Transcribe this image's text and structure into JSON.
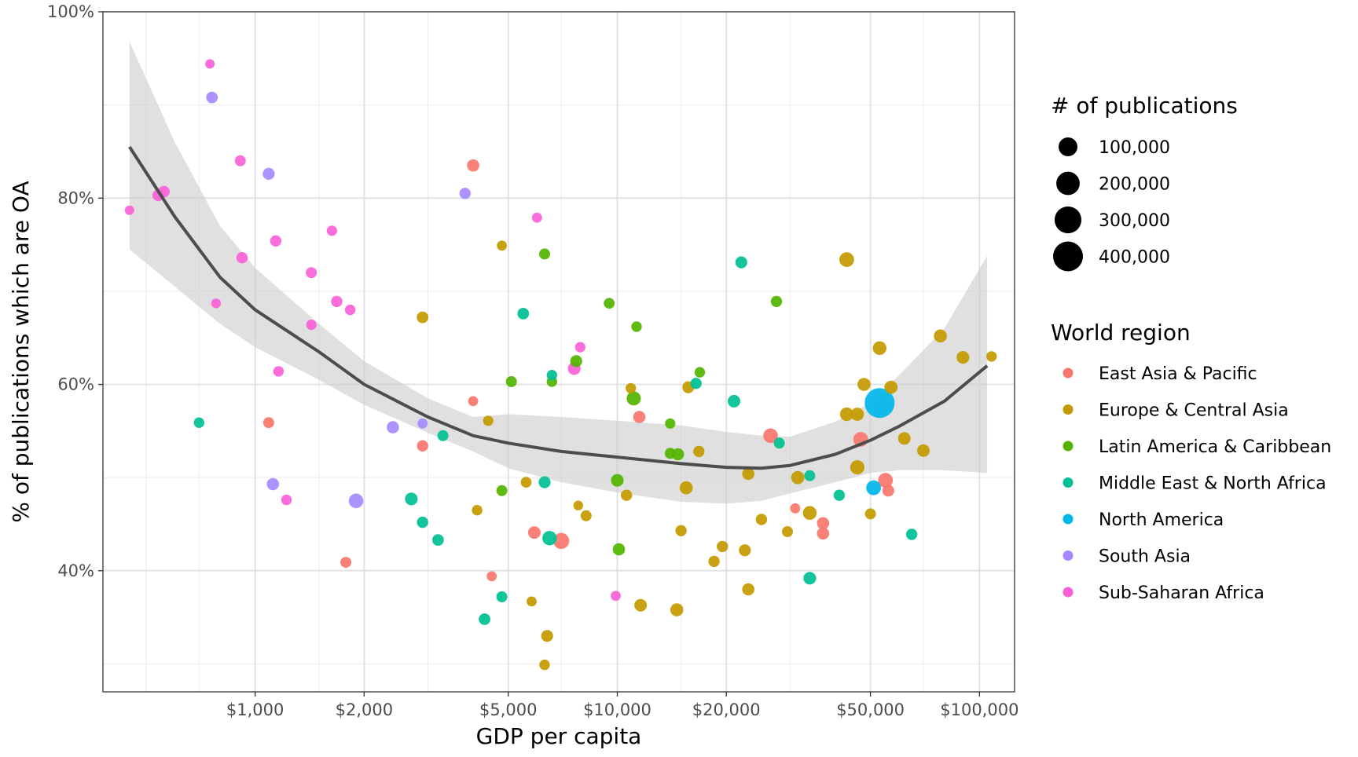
{
  "chart_data": {
    "type": "scatter",
    "xlabel": "GDP per capita",
    "ylabel": "% of publications which are OA",
    "x_scale": "log10",
    "xlim": [
      380,
      125000
    ],
    "ylim": [
      0.27,
      1.0
    ],
    "grid": true,
    "legend_placement": "right",
    "x_ticks": [
      {
        "value": 1000,
        "label": "$1,000"
      },
      {
        "value": 2000,
        "label": "$2,000"
      },
      {
        "value": 5000,
        "label": "$5,000"
      },
      {
        "value": 10000,
        "label": "$10,000"
      },
      {
        "value": 20000,
        "label": "$20,000"
      },
      {
        "value": 50000,
        "label": "$50,000"
      },
      {
        "value": 100000,
        "label": "$100,000"
      }
    ],
    "x_minor_ticks": [
      500,
      700,
      1500,
      3000,
      7000,
      15000,
      30000,
      70000
    ],
    "y_ticks": [
      {
        "value": 0.4,
        "label": "40%"
      },
      {
        "value": 0.6,
        "label": "60%"
      },
      {
        "value": 0.8,
        "label": "80%"
      },
      {
        "value": 1.0,
        "label": "100%"
      }
    ],
    "y_minor_ticks": [
      0.3,
      0.5,
      0.7,
      0.9
    ],
    "size_legend": {
      "title": "# of publications",
      "entries": [
        {
          "label": "100,000",
          "value": 100000
        },
        {
          "label": "200,000",
          "value": 200000
        },
        {
          "label": "300,000",
          "value": 300000
        },
        {
          "label": "400,000",
          "value": 400000
        }
      ]
    },
    "color_legend": {
      "title": "World region",
      "entries": [
        {
          "label": "East Asia & Pacific",
          "color": "#F8766D"
        },
        {
          "label": "Europe & Central Asia",
          "color": "#C49A00"
        },
        {
          "label": "Latin America & Caribbean",
          "color": "#53B400"
        },
        {
          "label": "Middle East & North Africa",
          "color": "#00C094"
        },
        {
          "label": "North America",
          "color": "#00B6EB"
        },
        {
          "label": "South Asia",
          "color": "#A58AFF"
        },
        {
          "label": "Sub-Saharan Africa",
          "color": "#FB61D7"
        }
      ]
    },
    "trend": {
      "type": "loess",
      "color": "#4d4d4d",
      "band_color": "#cccccc",
      "points": [
        {
          "x": 450,
          "y": 0.855,
          "lo": 0.745,
          "hi": 0.968
        },
        {
          "x": 600,
          "y": 0.78,
          "lo": 0.705,
          "hi": 0.86
        },
        {
          "x": 800,
          "y": 0.715,
          "lo": 0.665,
          "hi": 0.77
        },
        {
          "x": 1000,
          "y": 0.68,
          "lo": 0.64,
          "hi": 0.725
        },
        {
          "x": 1500,
          "y": 0.635,
          "lo": 0.605,
          "hi": 0.665
        },
        {
          "x": 2000,
          "y": 0.6,
          "lo": 0.578,
          "hi": 0.625
        },
        {
          "x": 3000,
          "y": 0.565,
          "lo": 0.548,
          "hi": 0.585
        },
        {
          "x": 4000,
          "y": 0.545,
          "lo": 0.528,
          "hi": 0.565
        },
        {
          "x": 5000,
          "y": 0.537,
          "lo": 0.51,
          "hi": 0.568
        },
        {
          "x": 7000,
          "y": 0.528,
          "lo": 0.495,
          "hi": 0.565
        },
        {
          "x": 10000,
          "y": 0.522,
          "lo": 0.484,
          "hi": 0.561
        },
        {
          "x": 15000,
          "y": 0.515,
          "lo": 0.474,
          "hi": 0.556
        },
        {
          "x": 20000,
          "y": 0.511,
          "lo": 0.472,
          "hi": 0.549
        },
        {
          "x": 25000,
          "y": 0.51,
          "lo": 0.475,
          "hi": 0.545
        },
        {
          "x": 30000,
          "y": 0.513,
          "lo": 0.483,
          "hi": 0.544
        },
        {
          "x": 40000,
          "y": 0.525,
          "lo": 0.495,
          "hi": 0.56
        },
        {
          "x": 50000,
          "y": 0.54,
          "lo": 0.505,
          "hi": 0.58
        },
        {
          "x": 60000,
          "y": 0.555,
          "lo": 0.508,
          "hi": 0.61
        },
        {
          "x": 80000,
          "y": 0.582,
          "lo": 0.508,
          "hi": 0.66
        },
        {
          "x": 105000,
          "y": 0.62,
          "lo": 0.505,
          "hi": 0.738
        }
      ]
    },
    "points": [
      {
        "x": 450,
        "y": 0.787,
        "r": "Sub-Saharan Africa",
        "n": 2000
      },
      {
        "x": 540,
        "y": 0.803,
        "r": "Sub-Saharan Africa",
        "n": 12000
      },
      {
        "x": 560,
        "y": 0.807,
        "r": "Sub-Saharan Africa",
        "n": 12000
      },
      {
        "x": 750,
        "y": 0.944,
        "r": "Sub-Saharan Africa",
        "n": 2000
      },
      {
        "x": 760,
        "y": 0.908,
        "r": "South Asia",
        "n": 12000
      },
      {
        "x": 780,
        "y": 0.687,
        "r": "Sub-Saharan Africa",
        "n": 3000
      },
      {
        "x": 910,
        "y": 0.84,
        "r": "Sub-Saharan Africa",
        "n": 8000
      },
      {
        "x": 920,
        "y": 0.736,
        "r": "Sub-Saharan Africa",
        "n": 10000
      },
      {
        "x": 1090,
        "y": 0.826,
        "r": "South Asia",
        "n": 14000
      },
      {
        "x": 1140,
        "y": 0.754,
        "r": "Sub-Saharan Africa",
        "n": 10000
      },
      {
        "x": 1160,
        "y": 0.614,
        "r": "Sub-Saharan Africa",
        "n": 6000
      },
      {
        "x": 1430,
        "y": 0.72,
        "r": "Sub-Saharan Africa",
        "n": 8000
      },
      {
        "x": 1430,
        "y": 0.664,
        "r": "Sub-Saharan Africa",
        "n": 5000
      },
      {
        "x": 1630,
        "y": 0.765,
        "r": "Sub-Saharan Africa",
        "n": 5000
      },
      {
        "x": 1680,
        "y": 0.689,
        "r": "Sub-Saharan Africa",
        "n": 10000
      },
      {
        "x": 1830,
        "y": 0.68,
        "r": "Sub-Saharan Africa",
        "n": 6000
      },
      {
        "x": 1220,
        "y": 0.476,
        "r": "Sub-Saharan Africa",
        "n": 6000
      },
      {
        "x": 9900,
        "y": 0.373,
        "r": "Sub-Saharan Africa",
        "n": 4000
      },
      {
        "x": 6000,
        "y": 0.779,
        "r": "Sub-Saharan Africa",
        "n": 4000
      },
      {
        "x": 7900,
        "y": 0.64,
        "r": "Sub-Saharan Africa",
        "n": 5000
      },
      {
        "x": 7600,
        "y": 0.617,
        "r": "Sub-Saharan Africa",
        "n": 20000
      },
      {
        "x": 3800,
        "y": 0.805,
        "r": "South Asia",
        "n": 10000
      },
      {
        "x": 2400,
        "y": 0.554,
        "r": "South Asia",
        "n": 16000
      },
      {
        "x": 2900,
        "y": 0.558,
        "r": "South Asia",
        "n": 4000
      },
      {
        "x": 1120,
        "y": 0.493,
        "r": "South Asia",
        "n": 16000
      },
      {
        "x": 1900,
        "y": 0.475,
        "r": "South Asia",
        "n": 38000
      },
      {
        "x": 4000,
        "y": 0.835,
        "r": "East Asia & Pacific",
        "n": 16000
      },
      {
        "x": 1090,
        "y": 0.559,
        "r": "East Asia & Pacific",
        "n": 8000
      },
      {
        "x": 2900,
        "y": 0.534,
        "r": "East Asia & Pacific",
        "n": 10000
      },
      {
        "x": 4000,
        "y": 0.582,
        "r": "East Asia & Pacific",
        "n": 4000
      },
      {
        "x": 1780,
        "y": 0.409,
        "r": "East Asia & Pacific",
        "n": 8000
      },
      {
        "x": 4500,
        "y": 0.394,
        "r": "East Asia & Pacific",
        "n": 4000
      },
      {
        "x": 5900,
        "y": 0.441,
        "r": "East Asia & Pacific",
        "n": 18000
      },
      {
        "x": 7000,
        "y": 0.432,
        "r": "East Asia & Pacific",
        "n": 55000
      },
      {
        "x": 11500,
        "y": 0.565,
        "r": "East Asia & Pacific",
        "n": 16000
      },
      {
        "x": 26500,
        "y": 0.545,
        "r": "East Asia & Pacific",
        "n": 38000
      },
      {
        "x": 31000,
        "y": 0.467,
        "r": "East Asia & Pacific",
        "n": 4000
      },
      {
        "x": 37000,
        "y": 0.451,
        "r": "East Asia & Pacific",
        "n": 16000
      },
      {
        "x": 37000,
        "y": 0.44,
        "r": "East Asia & Pacific",
        "n": 16000
      },
      {
        "x": 47000,
        "y": 0.541,
        "r": "East Asia & Pacific",
        "n": 40000
      },
      {
        "x": 55000,
        "y": 0.497,
        "r": "East Asia & Pacific",
        "n": 40000
      },
      {
        "x": 56000,
        "y": 0.486,
        "r": "East Asia & Pacific",
        "n": 14000
      },
      {
        "x": 4800,
        "y": 0.749,
        "r": "Europe & Central Asia",
        "n": 4000
      },
      {
        "x": 2900,
        "y": 0.672,
        "r": "Europe & Central Asia",
        "n": 12000
      },
      {
        "x": 4400,
        "y": 0.561,
        "r": "Europe & Central Asia",
        "n": 5000
      },
      {
        "x": 5600,
        "y": 0.495,
        "r": "Europe & Central Asia",
        "n": 7000
      },
      {
        "x": 4100,
        "y": 0.465,
        "r": "Europe & Central Asia",
        "n": 6000
      },
      {
        "x": 7800,
        "y": 0.47,
        "r": "Europe & Central Asia",
        "n": 3000
      },
      {
        "x": 8200,
        "y": 0.459,
        "r": "Europe & Central Asia",
        "n": 8000
      },
      {
        "x": 5800,
        "y": 0.367,
        "r": "Europe & Central Asia",
        "n": 4000
      },
      {
        "x": 6400,
        "y": 0.33,
        "r": "Europe & Central Asia",
        "n": 14000
      },
      {
        "x": 6300,
        "y": 0.299,
        "r": "Europe & Central Asia",
        "n": 6000
      },
      {
        "x": 10900,
        "y": 0.596,
        "r": "Europe & Central Asia",
        "n": 5000
      },
      {
        "x": 10600,
        "y": 0.481,
        "r": "Europe & Central Asia",
        "n": 10000
      },
      {
        "x": 11600,
        "y": 0.363,
        "r": "Europe & Central Asia",
        "n": 18000
      },
      {
        "x": 14600,
        "y": 0.358,
        "r": "Europe & Central Asia",
        "n": 22000
      },
      {
        "x": 15000,
        "y": 0.443,
        "r": "Europe & Central Asia",
        "n": 10000
      },
      {
        "x": 15700,
        "y": 0.597,
        "r": "Europe & Central Asia",
        "n": 14000
      },
      {
        "x": 15500,
        "y": 0.489,
        "r": "Europe & Central Asia",
        "n": 22000
      },
      {
        "x": 16800,
        "y": 0.528,
        "r": "Europe & Central Asia",
        "n": 10000
      },
      {
        "x": 18500,
        "y": 0.41,
        "r": "Europe & Central Asia",
        "n": 10000
      },
      {
        "x": 19500,
        "y": 0.426,
        "r": "Europe & Central Asia",
        "n": 10000
      },
      {
        "x": 22500,
        "y": 0.422,
        "r": "Europe & Central Asia",
        "n": 14000
      },
      {
        "x": 23000,
        "y": 0.38,
        "r": "Europe & Central Asia",
        "n": 16000
      },
      {
        "x": 23000,
        "y": 0.504,
        "r": "Europe & Central Asia",
        "n": 16000
      },
      {
        "x": 25000,
        "y": 0.455,
        "r": "Europe & Central Asia",
        "n": 10000
      },
      {
        "x": 29500,
        "y": 0.442,
        "r": "Europe & Central Asia",
        "n": 8000
      },
      {
        "x": 31500,
        "y": 0.5,
        "r": "Europe & Central Asia",
        "n": 24000
      },
      {
        "x": 34000,
        "y": 0.462,
        "r": "Europe & Central Asia",
        "n": 30000
      },
      {
        "x": 43000,
        "y": 0.734,
        "r": "Europe & Central Asia",
        "n": 40000
      },
      {
        "x": 43000,
        "y": 0.568,
        "r": "Europe & Central Asia",
        "n": 26000
      },
      {
        "x": 46000,
        "y": 0.568,
        "r": "Europe & Central Asia",
        "n": 24000
      },
      {
        "x": 46000,
        "y": 0.511,
        "r": "Europe & Central Asia",
        "n": 34000
      },
      {
        "x": 48000,
        "y": 0.6,
        "r": "Europe & Central Asia",
        "n": 22000
      },
      {
        "x": 50000,
        "y": 0.461,
        "r": "Europe & Central Asia",
        "n": 8000
      },
      {
        "x": 53000,
        "y": 0.639,
        "r": "Europe & Central Asia",
        "n": 28000
      },
      {
        "x": 57000,
        "y": 0.597,
        "r": "Europe & Central Asia",
        "n": 24000
      },
      {
        "x": 62000,
        "y": 0.542,
        "r": "Europe & Central Asia",
        "n": 18000
      },
      {
        "x": 70000,
        "y": 0.529,
        "r": "Europe & Central Asia",
        "n": 18000
      },
      {
        "x": 78000,
        "y": 0.652,
        "r": "Europe & Central Asia",
        "n": 22000
      },
      {
        "x": 90000,
        "y": 0.629,
        "r": "Europe & Central Asia",
        "n": 20000
      },
      {
        "x": 108000,
        "y": 0.63,
        "r": "Europe & Central Asia",
        "n": 6000
      },
      {
        "x": 6300,
        "y": 0.74,
        "r": "Latin America & Caribbean",
        "n": 8000
      },
      {
        "x": 5100,
        "y": 0.603,
        "r": "Latin America & Caribbean",
        "n": 8000
      },
      {
        "x": 6600,
        "y": 0.603,
        "r": "Latin America & Caribbean",
        "n": 6000
      },
      {
        "x": 7700,
        "y": 0.625,
        "r": "Latin America & Caribbean",
        "n": 14000
      },
      {
        "x": 4800,
        "y": 0.486,
        "r": "Latin America & Caribbean",
        "n": 8000
      },
      {
        "x": 9500,
        "y": 0.687,
        "r": "Latin America & Caribbean",
        "n": 7000
      },
      {
        "x": 11300,
        "y": 0.662,
        "r": "Latin America & Caribbean",
        "n": 6000
      },
      {
        "x": 11100,
        "y": 0.585,
        "r": "Latin America & Caribbean",
        "n": 32000
      },
      {
        "x": 10000,
        "y": 0.497,
        "r": "Latin America & Caribbean",
        "n": 20000
      },
      {
        "x": 10100,
        "y": 0.423,
        "r": "Latin America & Caribbean",
        "n": 16000
      },
      {
        "x": 14000,
        "y": 0.558,
        "r": "Latin America & Caribbean",
        "n": 5000
      },
      {
        "x": 14000,
        "y": 0.526,
        "r": "Latin America & Caribbean",
        "n": 8000
      },
      {
        "x": 14700,
        "y": 0.525,
        "r": "Latin America & Caribbean",
        "n": 16000
      },
      {
        "x": 16900,
        "y": 0.613,
        "r": "Latin America & Caribbean",
        "n": 6000
      },
      {
        "x": 27500,
        "y": 0.689,
        "r": "Latin America & Caribbean",
        "n": 10000
      },
      {
        "x": 700,
        "y": 0.559,
        "r": "Middle East & North Africa",
        "n": 6000
      },
      {
        "x": 3300,
        "y": 0.545,
        "r": "Middle East & North Africa",
        "n": 8000
      },
      {
        "x": 2700,
        "y": 0.477,
        "r": "Middle East & North Africa",
        "n": 20000
      },
      {
        "x": 2900,
        "y": 0.452,
        "r": "Middle East & North Africa",
        "n": 10000
      },
      {
        "x": 3200,
        "y": 0.433,
        "r": "Middle East & North Africa",
        "n": 12000
      },
      {
        "x": 5500,
        "y": 0.676,
        "r": "Middle East & North Africa",
        "n": 12000
      },
      {
        "x": 6600,
        "y": 0.61,
        "r": "Middle East & North Africa",
        "n": 6000
      },
      {
        "x": 6300,
        "y": 0.495,
        "r": "Middle East & North Africa",
        "n": 14000
      },
      {
        "x": 6500,
        "y": 0.435,
        "r": "Middle East & North Africa",
        "n": 36000
      },
      {
        "x": 4800,
        "y": 0.372,
        "r": "Middle East & North Africa",
        "n": 8000
      },
      {
        "x": 4300,
        "y": 0.348,
        "r": "Middle East & North Africa",
        "n": 12000
      },
      {
        "x": 16500,
        "y": 0.601,
        "r": "Middle East & North Africa",
        "n": 10000
      },
      {
        "x": 21000,
        "y": 0.582,
        "r": "Middle East & North Africa",
        "n": 18000
      },
      {
        "x": 22000,
        "y": 0.731,
        "r": "Middle East & North Africa",
        "n": 14000
      },
      {
        "x": 28000,
        "y": 0.537,
        "r": "Middle East & North Africa",
        "n": 8000
      },
      {
        "x": 34000,
        "y": 0.502,
        "r": "Middle East & North Africa",
        "n": 8000
      },
      {
        "x": 34000,
        "y": 0.392,
        "r": "Middle East & North Africa",
        "n": 20000
      },
      {
        "x": 41000,
        "y": 0.481,
        "r": "Middle East & North Africa",
        "n": 10000
      },
      {
        "x": 65000,
        "y": 0.439,
        "r": "Middle East & North Africa",
        "n": 10000
      },
      {
        "x": 51000,
        "y": 0.489,
        "r": "North America",
        "n": 40000
      },
      {
        "x": 53000,
        "y": 0.58,
        "r": "North America",
        "n": 400000
      }
    ]
  }
}
